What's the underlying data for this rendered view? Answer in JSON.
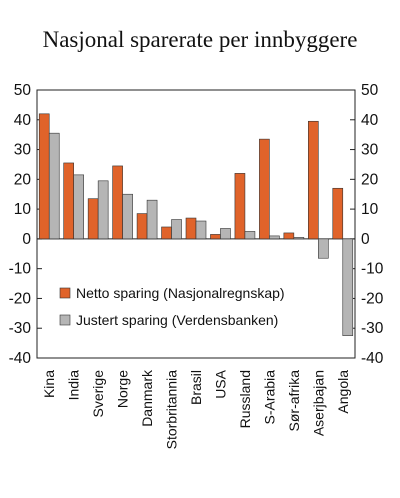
{
  "chart_data": {
    "type": "bar",
    "title": "Nasjonal sparerate per innbyggere",
    "categories": [
      "Kina",
      "India",
      "Sverige",
      "Norge",
      "Danmark",
      "Storbritannia",
      "Brasil",
      "USA",
      "Russland",
      "S-Arabia",
      "Sør-afrika",
      "Aserjbajan",
      "Angola"
    ],
    "series": [
      {
        "name": "Netto sparing (Nasjonalregnskap)",
        "color": "#E0632A",
        "values": [
          42,
          25.5,
          13.5,
          24.5,
          8.5,
          4,
          7,
          1.5,
          22,
          33.5,
          2,
          39.5,
          17
        ]
      },
      {
        "name": "Justert sparing (Verdensbanken)",
        "color": "#B5B5B5",
        "values": [
          35.5,
          21.5,
          19.5,
          15,
          13,
          6.5,
          6,
          3.5,
          2.5,
          1,
          0.5,
          -6.5,
          -32.5
        ]
      }
    ],
    "ylim": [
      -40,
      50
    ],
    "yticks": [
      -40,
      -30,
      -20,
      -10,
      0,
      10,
      20,
      30,
      40,
      50
    ],
    "secondary_y_axis": true,
    "grid": false,
    "legend_position": "lower-left inside plot"
  }
}
